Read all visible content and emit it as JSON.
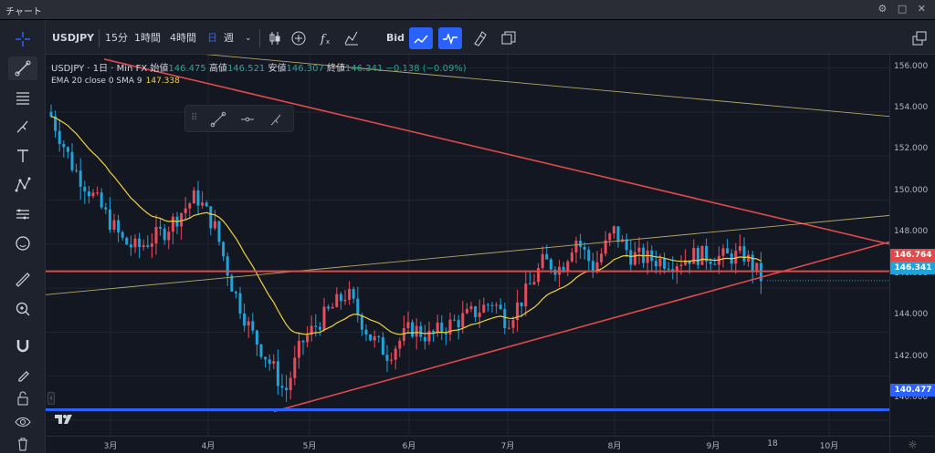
{
  "window": {
    "title": "チャート",
    "controls": "⚙ □ ✕"
  },
  "toolbar": {
    "symbol": "USDJPY",
    "intervals": [
      "15分",
      "1時間",
      "4時間",
      "日",
      "週"
    ],
    "active_interval": "日",
    "bid_label": "Bid"
  },
  "legend": {
    "symbol_line": "USDJPY · 1日 · Min FX",
    "open_label": "始値",
    "open": "146.475",
    "high_label": "高値",
    "high": "146.521",
    "low_label": "安値",
    "low": "146.307",
    "close_label": "終値",
    "close": "146.341",
    "change": "−0.138 (−0.09%)",
    "ema_label": "EMA 20 close 0 SMA 9",
    "ema_value": "147.338"
  },
  "colors": {
    "up": "#e74c5b",
    "down": "#1fa3d9",
    "ema": "#f0d23c",
    "trendline": "#e04a4a",
    "support": "#2962ff",
    "accent": "#2962ff"
  },
  "price_scale": {
    "ticks": [
      "156.000",
      "154.000",
      "152.000",
      "150.000",
      "148.000",
      "146.000",
      "144.000",
      "142.000",
      "140.000"
    ],
    "resistance_label": "146.764",
    "last_price_label": "146.341",
    "support_label": "140.477"
  },
  "time_scale": {
    "ticks": [
      "3月",
      "4月",
      "5月",
      "6月",
      "7月",
      "8月",
      "9月",
      "18",
      "10月"
    ]
  },
  "chart_data": {
    "type": "candlestick",
    "ylim": [
      139.3,
      156.6
    ],
    "horizontal_lines": [
      {
        "name": "resistance",
        "price": 146.764
      },
      {
        "name": "support",
        "price": 140.477
      }
    ],
    "last_price": 146.341
  },
  "left_tools": [
    "crosshair-icon",
    "trendline-icon",
    "fib-icon",
    "brush-icon",
    "text-icon",
    "pattern-icon",
    "forecast-icon",
    "emoji-icon",
    "ruler-icon",
    "zoom-icon",
    "magnet-icon",
    "lock-draw-icon",
    "lock-icon",
    "eye-icon",
    "trash-icon"
  ]
}
